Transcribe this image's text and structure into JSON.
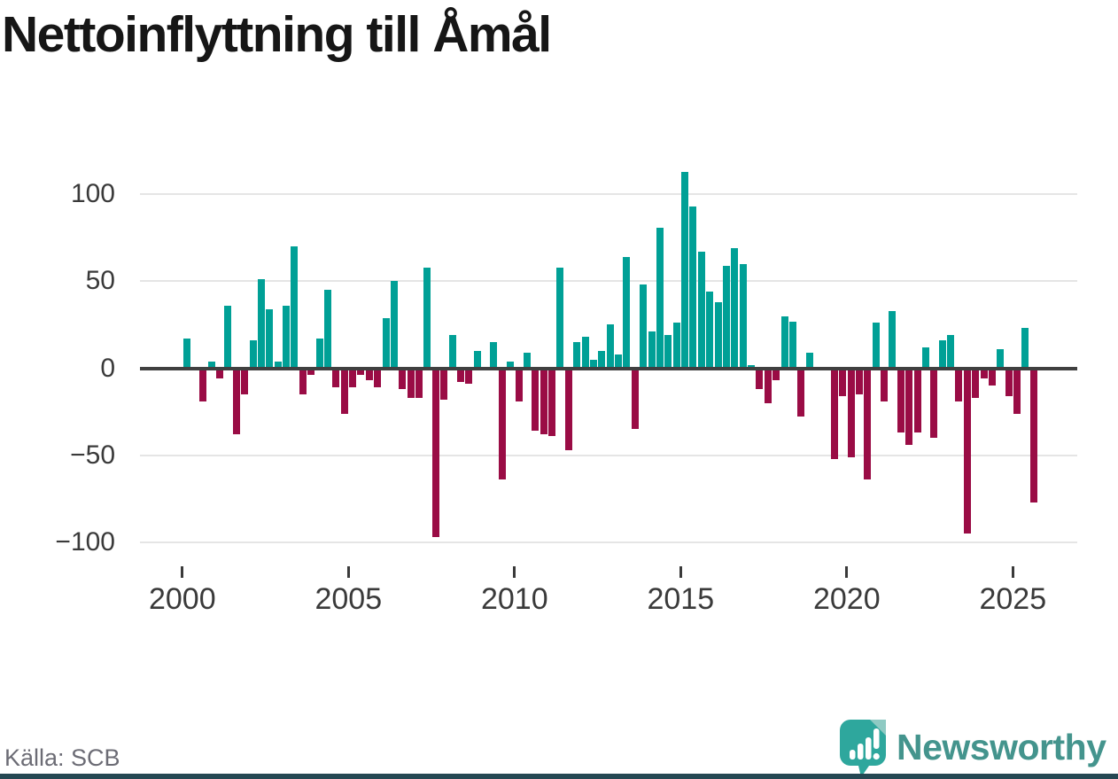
{
  "title": "Nettoinflyttning till Åmål",
  "source": "Källa: SCB",
  "branding": {
    "wordmark": "Newsworthy",
    "wordmark_color": "#44948d",
    "icon": "bar-chart-speech-bubble-icon",
    "icon_color": "#2ea79d",
    "icon_fold_color": "#8ecac3",
    "footer_strip_color": "#254752"
  },
  "colors": {
    "background": "#ffffff",
    "positive_bar": "#00a096",
    "negative_bar": "#9a0c45",
    "zero_line": "#404040",
    "gridline": "#e5e5e5",
    "axis_text": "#3a3a3a",
    "title_text": "#161616",
    "source_text": "#6c6c75"
  },
  "y_axis": {
    "ticks": [
      {
        "label": "100",
        "value": 100
      },
      {
        "label": "50",
        "value": 50
      },
      {
        "label": "0",
        "value": 0
      },
      {
        "label": "−50",
        "value": -50
      },
      {
        "label": "−100",
        "value": -100
      }
    ]
  },
  "x_axis": {
    "ticks": [
      "2000",
      "2005",
      "2010",
      "2015",
      "2020",
      "2025"
    ]
  },
  "chart_data": {
    "type": "bar",
    "title": "Nettoinflyttning till Åmål",
    "frequency": "quarterly",
    "start": "2000 Q1",
    "end": "2025 Q3",
    "ylim": [
      -100,
      113
    ],
    "grid": "horizontal",
    "legend": "none",
    "positive_color": "#00a096",
    "negative_color": "#9a0c45",
    "values_by_year": {
      "2000": [
        17,
        0,
        -19,
        4
      ],
      "2001": [
        -6,
        36,
        -38,
        -15
      ],
      "2002": [
        16,
        51,
        34,
        4
      ],
      "2003": [
        36,
        70,
        -15,
        -4
      ],
      "2004": [
        17,
        45,
        -11,
        -26
      ],
      "2005": [
        -11,
        -4,
        -7,
        -11
      ],
      "2006": [
        29,
        50,
        -12,
        -17
      ],
      "2007": [
        -17,
        58,
        -97,
        -18
      ],
      "2008": [
        19,
        -8,
        -9,
        10
      ],
      "2009": [
        0,
        15,
        -64,
        4
      ],
      "2010": [
        -19,
        9,
        -36,
        -38
      ],
      "2011": [
        -39,
        58,
        -47,
        15
      ],
      "2012": [
        18,
        5,
        10,
        25
      ],
      "2013": [
        8,
        64,
        -35,
        48
      ],
      "2014": [
        21,
        81,
        19,
        26
      ],
      "2015": [
        113,
        93,
        67,
        44
      ],
      "2016": [
        38,
        59,
        69,
        60
      ],
      "2017": [
        2,
        -12,
        -20,
        -7
      ],
      "2018": [
        30,
        27,
        -28,
        9
      ],
      "2019": [
        0,
        0,
        -52,
        -16
      ],
      "2020": [
        -51,
        -15,
        -64,
        26
      ],
      "2021": [
        -19,
        33,
        -37,
        -44
      ],
      "2022": [
        -37,
        12,
        -40,
        16
      ],
      "2023": [
        19,
        -19,
        -95,
        -17
      ],
      "2024": [
        -6,
        -10,
        11,
        -16
      ],
      "2025": [
        -26,
        23,
        -77
      ]
    }
  }
}
